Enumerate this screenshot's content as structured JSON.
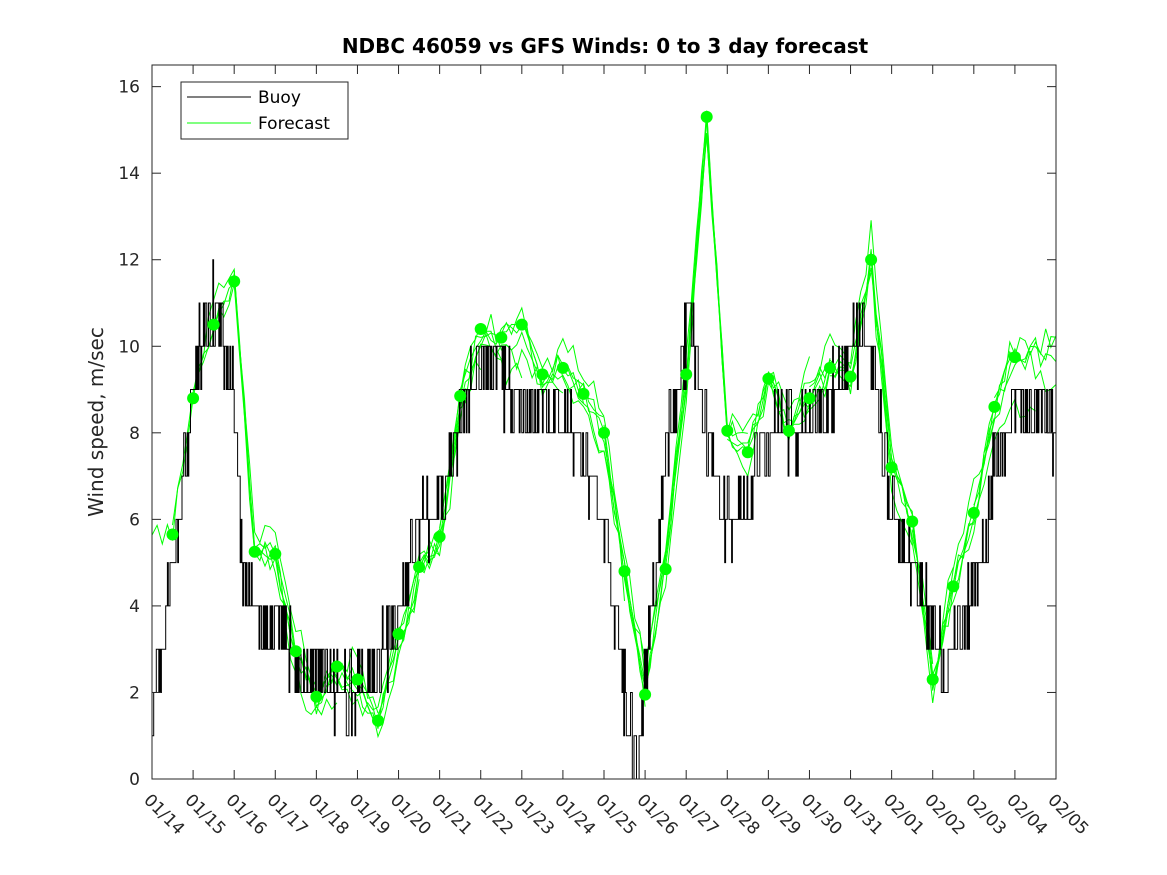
{
  "chart_data": {
    "type": "line",
    "title": "NDBC 46059 vs GFS Winds: 0 to 3 day forecast",
    "xlabel": "",
    "ylabel": "Wind speed, m/sec",
    "xlim": [
      "01/14",
      "02/05"
    ],
    "ylim": [
      0,
      16.5
    ],
    "x_ticks": [
      "01/14",
      "01/15",
      "01/16",
      "01/17",
      "01/18",
      "01/19",
      "01/20",
      "01/21",
      "01/22",
      "01/23",
      "01/24",
      "01/25",
      "01/26",
      "01/27",
      "01/28",
      "01/29",
      "01/30",
      "01/31",
      "02/01",
      "02/02",
      "02/03",
      "02/04",
      "02/05"
    ],
    "y_ticks": [
      0,
      2,
      4,
      6,
      8,
      10,
      12,
      14,
      16
    ],
    "grid": false,
    "legend_position": "top-left",
    "colors": {
      "buoy": "#000000",
      "forecast": "#00ff00",
      "axis": "#262626"
    },
    "legend": [
      "Buoy",
      "Forecast"
    ],
    "buoy_profile": {
      "x_days": [
        0,
        0.2,
        0.35,
        0.5,
        0.75,
        1,
        1.25,
        1.5,
        1.75,
        2,
        2.2,
        2.4,
        2.7,
        3,
        3.3,
        3.6,
        3.9,
        4.2,
        4.5,
        4.8,
        5.1,
        5.4,
        5.7,
        6,
        6.3,
        6.6,
        6.9,
        7.2,
        7.5,
        7.8,
        8.1,
        8.4,
        8.7,
        9,
        9.3,
        9.6,
        9.9,
        10.2,
        10.5,
        10.8,
        11.1,
        11.4,
        11.6,
        11.8,
        12,
        12.3,
        12.6,
        12.9,
        13.1,
        13.3,
        13.5,
        13.7,
        13.9,
        14.2,
        14.5,
        14.8,
        15.1,
        15.4,
        15.7,
        16,
        16.3,
        16.6,
        16.9,
        17.1,
        17.3,
        17.5,
        17.7,
        17.9,
        18.1,
        18.4,
        18.7,
        19,
        19.3,
        19.6,
        19.9,
        20.2,
        20.5,
        20.8,
        21,
        21.3,
        21.6,
        22
      ],
      "y_values": [
        1.5,
        2.5,
        4,
        5,
        7,
        9,
        10.5,
        11,
        10,
        9,
        5,
        4,
        3.5,
        3.5,
        3,
        2.5,
        2.5,
        2.5,
        2,
        2,
        2,
        2.5,
        3,
        4,
        5.5,
        6,
        6,
        7,
        8.5,
        9,
        9.5,
        9.5,
        9,
        8.5,
        8.5,
        8.5,
        8.5,
        8,
        7.5,
        6.5,
        5,
        3,
        1,
        0.5,
        2.5,
        5.5,
        8,
        9.5,
        11,
        9.5,
        8,
        7,
        6,
        6,
        6.5,
        7.5,
        8,
        8,
        8,
        8.5,
        8.5,
        9,
        9.5,
        10,
        10,
        9.5,
        8.5,
        7,
        6,
        5,
        4.5,
        3.5,
        2.5,
        3,
        4,
        5.5,
        7,
        8,
        8.5,
        8.5,
        8.5,
        8
      ]
    },
    "forecast_dots": {
      "x_days": [
        0.5,
        1,
        1.5,
        2,
        2.5,
        3,
        3.5,
        4,
        4.5,
        5,
        5.5,
        6,
        6.5,
        7,
        7.5,
        8,
        8.5,
        9,
        9.5,
        10,
        10.5,
        11,
        11.5,
        12,
        12.5,
        13,
        13.5,
        14,
        14.5,
        15,
        15.5,
        16,
        16.5,
        17,
        17.5,
        18,
        18.5,
        19,
        19.5,
        20,
        20.5,
        21
      ],
      "y_values": [
        5.65,
        8.8,
        10.5,
        11.5,
        5.25,
        5.2,
        2.95,
        1.9,
        2.6,
        2.3,
        1.35,
        3.35,
        4.9,
        5.6,
        8.85,
        10.4,
        10.2,
        10.5,
        9.35,
        9.5,
        8.9,
        8,
        4.8,
        1.95,
        4.85,
        9.35,
        15.3,
        8.05,
        7.55,
        9.25,
        8.05,
        8.8,
        9.5,
        9.3,
        12,
        7.2,
        5.95,
        2.3,
        4.45,
        6.15,
        8.6,
        9.75
      ]
    }
  }
}
